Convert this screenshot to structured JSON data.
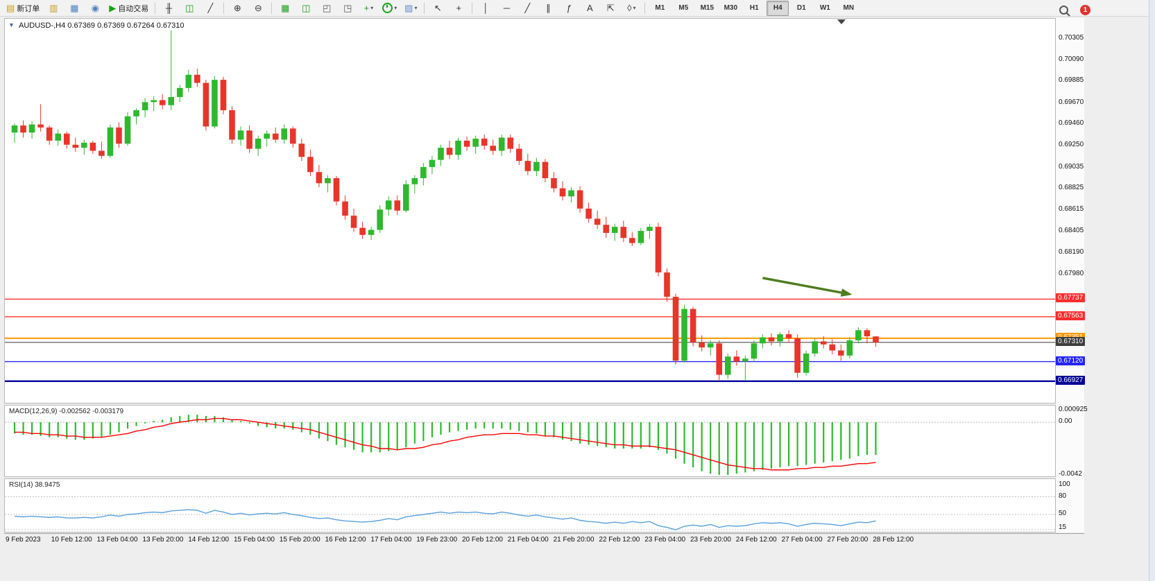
{
  "toolbar": {
    "items": [
      {
        "name": "new-order-button",
        "glyph": "▤",
        "color": "#c99a1e",
        "label": "新订单"
      },
      {
        "name": "symbols-button",
        "glyph": "▥",
        "color": "#c99a1e"
      },
      {
        "name": "profiles-button",
        "glyph": "▦",
        "color": "#4f81bd"
      },
      {
        "name": "charts-grid-button",
        "glyph": "◉",
        "color": "#4f81bd"
      },
      {
        "name": "auto-trading-button",
        "glyph": "▶",
        "color": "#18a018",
        "label": "自动交易"
      },
      {
        "sep": true
      },
      {
        "name": "bar-chart-button",
        "glyph": "╫",
        "color": "#333333"
      },
      {
        "name": "candlestick-chart-button",
        "glyph": "◫",
        "color": "#18a018"
      },
      {
        "name": "line-chart-button",
        "glyph": "╱",
        "color": "#333333"
      },
      {
        "sep": true
      },
      {
        "name": "zoom-in-button",
        "glyph": "⊕",
        "color": "#333333"
      },
      {
        "name": "zoom-out-button",
        "glyph": "⊖",
        "color": "#333333"
      },
      {
        "sep": true
      },
      {
        "name": "tile-windows-button",
        "glyph": "▦",
        "color": "#18a018"
      },
      {
        "name": "tile-vertical-button",
        "glyph": "◫",
        "color": "#18a018"
      },
      {
        "name": "auto-scroll-button",
        "glyph": "◰",
        "color": "#555555"
      },
      {
        "name": "chart-shift-button",
        "glyph": "◳",
        "color": "#555555"
      },
      {
        "name": "new-chart-dropdown",
        "glyph": "+",
        "color": "#18a018",
        "dropdown": true
      },
      {
        "name": "period-dropdown",
        "shape": "clock",
        "color": "#18a018",
        "dropdown": true
      },
      {
        "name": "template-dropdown",
        "glyph": "▨",
        "color": "#6a8ac9",
        "dropdown": true
      },
      {
        "sep": true
      },
      {
        "name": "cursor-button",
        "glyph": "↖",
        "color": "#333333"
      },
      {
        "name": "crosshair-button",
        "glyph": "+",
        "color": "#333333"
      },
      {
        "sep": true
      },
      {
        "name": "vertical-line-button",
        "glyph": "│",
        "color": "#333333"
      },
      {
        "name": "horizontal-line-button",
        "glyph": "─",
        "color": "#333333"
      },
      {
        "name": "trendline-button",
        "glyph": "╱",
        "color": "#333333"
      },
      {
        "name": "channel-button",
        "glyph": "∥",
        "color": "#333333"
      },
      {
        "name": "fibonacci-button",
        "glyph": "ƒ",
        "color": "#333333"
      },
      {
        "name": "text-button",
        "glyph": "A",
        "color": "#333333"
      },
      {
        "name": "arrow-label-button",
        "glyph": "⇱",
        "color": "#333333"
      },
      {
        "name": "shapes-dropdown",
        "glyph": "◊",
        "color": "#333333",
        "dropdown": true
      },
      {
        "sep": true
      }
    ],
    "timeframes": [
      "M1",
      "M5",
      "M15",
      "M30",
      "H1",
      "H4",
      "D1",
      "W1",
      "MN"
    ],
    "active_timeframe": "H4",
    "notification_count": "1"
  },
  "chart": {
    "header_text": "AUDUSD-,H4 0.67369 0.67369 0.67264 0.67310",
    "symbol": "AUDUSD-",
    "period": "H4",
    "open": "0.67369",
    "high": "0.67369",
    "low": "0.67264",
    "close": "0.67310",
    "one_click_arrow": "▼"
  },
  "chart_data": {
    "type": "candlestick",
    "symbol": "AUDUSD",
    "timeframe": "H4",
    "price_range": [
      0.66714,
      0.70503
    ],
    "bull_color": "#2eb82e",
    "bear_color": "#e8352a",
    "candles": [
      [
        0.6938,
        0.6947,
        0.6928,
        0.6945
      ],
      [
        0.6945,
        0.695,
        0.6933,
        0.6938
      ],
      [
        0.6938,
        0.6949,
        0.6932,
        0.6946
      ],
      [
        0.6946,
        0.6966,
        0.6939,
        0.6943
      ],
      [
        0.6943,
        0.6945,
        0.6926,
        0.693
      ],
      [
        0.693,
        0.6941,
        0.6925,
        0.6937
      ],
      [
        0.6937,
        0.6939,
        0.6922,
        0.6926
      ],
      [
        0.6926,
        0.6933,
        0.6919,
        0.6923
      ],
      [
        0.6923,
        0.6931,
        0.6916,
        0.6928
      ],
      [
        0.6928,
        0.693,
        0.6917,
        0.692
      ],
      [
        0.692,
        0.6929,
        0.6912,
        0.6915
      ],
      [
        0.6915,
        0.6946,
        0.6913,
        0.6943
      ],
      [
        0.6943,
        0.6948,
        0.6923,
        0.6927
      ],
      [
        0.6927,
        0.6958,
        0.6925,
        0.6954
      ],
      [
        0.6954,
        0.6962,
        0.6946,
        0.696
      ],
      [
        0.696,
        0.6972,
        0.6953,
        0.6968
      ],
      [
        0.6968,
        0.6974,
        0.6959,
        0.697
      ],
      [
        0.697,
        0.6976,
        0.6961,
        0.6965
      ],
      [
        0.6965,
        0.7039,
        0.696,
        0.6973
      ],
      [
        0.6973,
        0.6985,
        0.6968,
        0.6982
      ],
      [
        0.6982,
        0.7,
        0.6978,
        0.6995
      ],
      [
        0.6995,
        0.7001,
        0.6983,
        0.6987
      ],
      [
        0.6987,
        0.699,
        0.694,
        0.6944
      ],
      [
        0.6944,
        0.6994,
        0.6942,
        0.699
      ],
      [
        0.699,
        0.6993,
        0.6956,
        0.696
      ],
      [
        0.696,
        0.6964,
        0.6927,
        0.6931
      ],
      [
        0.6931,
        0.6944,
        0.6925,
        0.694
      ],
      [
        0.694,
        0.6945,
        0.6918,
        0.6922
      ],
      [
        0.6922,
        0.6935,
        0.6915,
        0.6932
      ],
      [
        0.6932,
        0.694,
        0.6924,
        0.6937
      ],
      [
        0.6937,
        0.6943,
        0.6928,
        0.6931
      ],
      [
        0.6931,
        0.6946,
        0.6927,
        0.6942
      ],
      [
        0.6942,
        0.6944,
        0.6923,
        0.6927
      ],
      [
        0.6927,
        0.6932,
        0.691,
        0.6914
      ],
      [
        0.6914,
        0.6921,
        0.6895,
        0.6899
      ],
      [
        0.6899,
        0.6906,
        0.6884,
        0.6888
      ],
      [
        0.6888,
        0.6896,
        0.6879,
        0.6893
      ],
      [
        0.6893,
        0.6895,
        0.6866,
        0.687
      ],
      [
        0.687,
        0.6876,
        0.6852,
        0.6856
      ],
      [
        0.6856,
        0.6863,
        0.684,
        0.6844
      ],
      [
        0.6844,
        0.685,
        0.6833,
        0.6837
      ],
      [
        0.6837,
        0.6845,
        0.6832,
        0.6842
      ],
      [
        0.6842,
        0.6866,
        0.6839,
        0.6862
      ],
      [
        0.6862,
        0.6875,
        0.6856,
        0.6871
      ],
      [
        0.6871,
        0.6876,
        0.6857,
        0.6861
      ],
      [
        0.6861,
        0.6891,
        0.6859,
        0.6887
      ],
      [
        0.6887,
        0.6896,
        0.6878,
        0.6893
      ],
      [
        0.6893,
        0.6908,
        0.6886,
        0.6904
      ],
      [
        0.6904,
        0.6915,
        0.6897,
        0.6911
      ],
      [
        0.6911,
        0.6926,
        0.6905,
        0.6923
      ],
      [
        0.6923,
        0.693,
        0.6912,
        0.6916
      ],
      [
        0.6916,
        0.6933,
        0.6911,
        0.693
      ],
      [
        0.693,
        0.6934,
        0.692,
        0.6924
      ],
      [
        0.6924,
        0.6935,
        0.6917,
        0.6932
      ],
      [
        0.6932,
        0.6936,
        0.6921,
        0.6925
      ],
      [
        0.6925,
        0.6931,
        0.6916,
        0.692
      ],
      [
        0.692,
        0.6936,
        0.6915,
        0.6933
      ],
      [
        0.6933,
        0.6936,
        0.6918,
        0.6922
      ],
      [
        0.6922,
        0.6927,
        0.6906,
        0.691
      ],
      [
        0.691,
        0.6917,
        0.6896,
        0.69
      ],
      [
        0.69,
        0.6913,
        0.6895,
        0.6909
      ],
      [
        0.6909,
        0.6912,
        0.6889,
        0.6893
      ],
      [
        0.6893,
        0.6899,
        0.6879,
        0.6883
      ],
      [
        0.6883,
        0.689,
        0.6871,
        0.6875
      ],
      [
        0.6875,
        0.6884,
        0.6869,
        0.6881
      ],
      [
        0.6881,
        0.6885,
        0.6859,
        0.6863
      ],
      [
        0.6863,
        0.6869,
        0.6849,
        0.6853
      ],
      [
        0.6853,
        0.6861,
        0.6843,
        0.6847
      ],
      [
        0.6847,
        0.6855,
        0.6834,
        0.6839
      ],
      [
        0.6839,
        0.6848,
        0.6831,
        0.6845
      ],
      [
        0.6845,
        0.6851,
        0.683,
        0.6834
      ],
      [
        0.6834,
        0.684,
        0.6826,
        0.6829
      ],
      [
        0.6829,
        0.6844,
        0.6827,
        0.6841
      ],
      [
        0.6841,
        0.6848,
        0.6833,
        0.6845
      ],
      [
        0.6845,
        0.6849,
        0.6796,
        0.68
      ],
      [
        0.68,
        0.6804,
        0.6771,
        0.6776
      ],
      [
        0.6776,
        0.6779,
        0.6709,
        0.6713
      ],
      [
        0.6713,
        0.6768,
        0.6711,
        0.6764
      ],
      [
        0.6764,
        0.6766,
        0.6727,
        0.6731
      ],
      [
        0.6731,
        0.6738,
        0.6722,
        0.6726
      ],
      [
        0.6726,
        0.6733,
        0.6718,
        0.673
      ],
      [
        0.673,
        0.6733,
        0.6693,
        0.6699
      ],
      [
        0.6699,
        0.672,
        0.6695,
        0.6717
      ],
      [
        0.6717,
        0.6723,
        0.6708,
        0.6712
      ],
      [
        0.6712,
        0.6718,
        0.6694,
        0.6715
      ],
      [
        0.6715,
        0.6733,
        0.6712,
        0.673
      ],
      [
        0.673,
        0.6739,
        0.6725,
        0.6736
      ],
      [
        0.6736,
        0.674,
        0.6728,
        0.6732
      ],
      [
        0.6732,
        0.6741,
        0.6727,
        0.6739
      ],
      [
        0.6739,
        0.6743,
        0.6731,
        0.6735
      ],
      [
        0.6735,
        0.6739,
        0.6696,
        0.6701
      ],
      [
        0.6701,
        0.6723,
        0.6698,
        0.672
      ],
      [
        0.672,
        0.6735,
        0.6717,
        0.6732
      ],
      [
        0.6732,
        0.6737,
        0.6725,
        0.6729
      ],
      [
        0.6729,
        0.6734,
        0.6719,
        0.6723
      ],
      [
        0.6723,
        0.6729,
        0.6713,
        0.6718
      ],
      [
        0.6718,
        0.6736,
        0.6715,
        0.6733
      ],
      [
        0.6733,
        0.6746,
        0.673,
        0.6743
      ],
      [
        0.6743,
        0.6745,
        0.673,
        0.6737
      ],
      [
        0.67369,
        0.67369,
        0.67264,
        0.6731
      ]
    ],
    "price_axis_labels": [
      "0.70305",
      "0.70090",
      "0.69885",
      "0.69670",
      "0.69460",
      "0.69250",
      "0.69035",
      "0.68825",
      "0.68615",
      "0.68405",
      "0.68190",
      "0.67980"
    ],
    "hlines": [
      {
        "price": 0.67737,
        "label": "0.67737",
        "color": "#ff2d2d",
        "tag": "#ff2d2d",
        "width": 1.4
      },
      {
        "price": 0.67563,
        "label": "0.67563",
        "color": "#ff2d2d",
        "tag": "#ff2d2d",
        "width": 1.4
      },
      {
        "price": 0.67351,
        "label": "0.67351",
        "color": "#ff9800",
        "tag": "#ff9800",
        "width": 2
      },
      {
        "price": 0.6731,
        "label": "0.67310",
        "color": "#4d4d4d",
        "tag": "#3d3d3d",
        "width": 1.2
      },
      {
        "price": 0.6712,
        "label": "0.67120",
        "color": "#2323ff",
        "tag": "#2323ff",
        "width": 1.4
      },
      {
        "price": 0.66927,
        "label": "0.66927",
        "color": "#000099",
        "tag": "#000099",
        "width": 2.4
      }
    ],
    "arrow_annotation": {
      "from_bar": 86,
      "from_price": 0.67945,
      "to_bar": 96.3,
      "to_price": 0.67781,
      "color": "#4f7b20"
    },
    "macd": {
      "label": "MACD(12,26,9) -0.002562 -0.003179",
      "name": "MACD(12,26,9)",
      "value": "-0.002562",
      "signal_value": "-0.003179",
      "hist_color": "#2eb82e",
      "signal_color": "#ff0000",
      "axis_labels": [
        {
          "text": "0.000925",
          "value": 0.000925
        },
        {
          "text": "0.00",
          "value": 0
        },
        {
          "text": "-0.0042",
          "value": -0.0042
        }
      ],
      "histogram": [
        -0.0009,
        -0.001,
        -0.001,
        -0.0011,
        -0.0012,
        -0.0012,
        -0.0013,
        -0.0014,
        -0.0014,
        -0.0013,
        -0.0012,
        -0.001,
        -0.0008,
        -0.0005,
        -0.0003,
        -0.0001,
        0.0001,
        0.0002,
        0.0004,
        0.0005,
        0.0006,
        0.0006,
        0.0005,
        0.0005,
        0.0004,
        0.0002,
        0.0001,
        -0.0001,
        -0.0003,
        -0.0004,
        -0.0005,
        -0.0005,
        -0.0006,
        -0.0008,
        -0.001,
        -0.0013,
        -0.0015,
        -0.0018,
        -0.002,
        -0.0022,
        -0.0024,
        -0.0024,
        -0.0024,
        -0.0023,
        -0.0022,
        -0.002,
        -0.0017,
        -0.0015,
        -0.0012,
        -0.001,
        -0.0008,
        -0.0007,
        -0.0006,
        -0.0005,
        -0.0005,
        -0.0005,
        -0.0005,
        -0.0006,
        -0.0007,
        -0.0008,
        -0.0009,
        -0.0011,
        -0.0012,
        -0.0014,
        -0.0015,
        -0.0017,
        -0.0018,
        -0.0019,
        -0.002,
        -0.0021,
        -0.0021,
        -0.0021,
        -0.0021,
        -0.002,
        -0.0022,
        -0.0025,
        -0.0029,
        -0.0033,
        -0.0036,
        -0.0039,
        -0.0041,
        -0.0042,
        -0.0042,
        -0.0041,
        -0.004,
        -0.0039,
        -0.0038,
        -0.0037,
        -0.0036,
        -0.0035,
        -0.0035,
        -0.0034,
        -0.0033,
        -0.0032,
        -0.0031,
        -0.003,
        -0.0029,
        -0.0027,
        -0.0026,
        -0.0026
      ],
      "signal": [
        -0.0008,
        -0.0008,
        -0.0009,
        -0.0009,
        -0.001,
        -0.001,
        -0.0011,
        -0.0011,
        -0.0012,
        -0.0012,
        -0.0012,
        -0.0011,
        -0.001,
        -0.0009,
        -0.0007,
        -0.0006,
        -0.0004,
        -0.0003,
        -0.0001,
        0.0,
        0.0001,
        0.0002,
        0.0002,
        0.0003,
        0.0003,
        0.0002,
        0.0002,
        0.0001,
        0.0,
        -0.0001,
        -0.0002,
        -0.0003,
        -0.0004,
        -0.0005,
        -0.0006,
        -0.0008,
        -0.001,
        -0.0012,
        -0.0014,
        -0.0016,
        -0.0018,
        -0.0019,
        -0.0021,
        -0.0021,
        -0.0022,
        -0.0021,
        -0.0021,
        -0.002,
        -0.0018,
        -0.0017,
        -0.0015,
        -0.0014,
        -0.0012,
        -0.0011,
        -0.001,
        -0.001,
        -0.0009,
        -0.0009,
        -0.0009,
        -0.001,
        -0.001,
        -0.0011,
        -0.0011,
        -0.0012,
        -0.0013,
        -0.0014,
        -0.0015,
        -0.0016,
        -0.0017,
        -0.0018,
        -0.0018,
        -0.0019,
        -0.0019,
        -0.0019,
        -0.002,
        -0.0021,
        -0.0022,
        -0.0024,
        -0.0026,
        -0.0028,
        -0.003,
        -0.0032,
        -0.0034,
        -0.0035,
        -0.0036,
        -0.0037,
        -0.0037,
        -0.0038,
        -0.0038,
        -0.0038,
        -0.0037,
        -0.0037,
        -0.0036,
        -0.0036,
        -0.0035,
        -0.0035,
        -0.0034,
        -0.0033,
        -0.0033,
        -0.0032
      ]
    },
    "rsi": {
      "label": "RSI(14) 38.9475",
      "name": "RSI(14)",
      "value": "38.9475",
      "line_color": "#59a0dc",
      "levels": [
        {
          "text": "100",
          "value": 100,
          "line": false
        },
        {
          "text": "80",
          "value": 80,
          "line": true
        },
        {
          "text": "50",
          "value": 50,
          "line": true
        },
        {
          "text": "15",
          "value": 15,
          "line": true
        }
      ],
      "values": [
        47,
        46,
        47,
        46,
        45,
        46,
        44,
        44,
        45,
        44,
        46,
        49,
        47,
        50,
        51,
        53,
        54,
        53,
        56,
        57,
        58,
        57,
        52,
        57,
        54,
        50,
        52,
        49,
        51,
        52,
        51,
        53,
        50,
        48,
        45,
        43,
        44,
        41,
        39,
        38,
        37,
        38,
        40,
        43,
        41,
        46,
        48,
        50,
        52,
        54,
        52,
        54,
        53,
        54,
        52,
        51,
        54,
        52,
        49,
        47,
        49,
        46,
        44,
        42,
        44,
        40,
        38,
        37,
        35,
        37,
        35,
        38,
        36,
        38,
        31,
        28,
        24,
        30,
        32,
        30,
        33,
        28,
        31,
        30,
        31,
        34,
        36,
        35,
        36,
        34,
        30,
        33,
        35,
        34,
        33,
        31,
        34,
        37,
        36,
        39
      ]
    },
    "time_labels": [
      "9 Feb 2023",
      "10 Feb 12:00",
      "13 Feb 04:00",
      "13 Feb 20:00",
      "14 Feb 12:00",
      "15 Feb 04:00",
      "15 Feb 20:00",
      "16 Feb 12:00",
      "17 Feb 04:00",
      "19 Feb 23:00",
      "20 Feb 12:00",
      "21 Feb 04:00",
      "21 Feb 20:00",
      "22 Feb 12:00",
      "23 Feb 04:00",
      "23 Feb 20:00",
      "24 Feb 12:00",
      "27 Feb 04:00",
      "27 Feb 20:00",
      "28 Feb 12:00"
    ]
  }
}
